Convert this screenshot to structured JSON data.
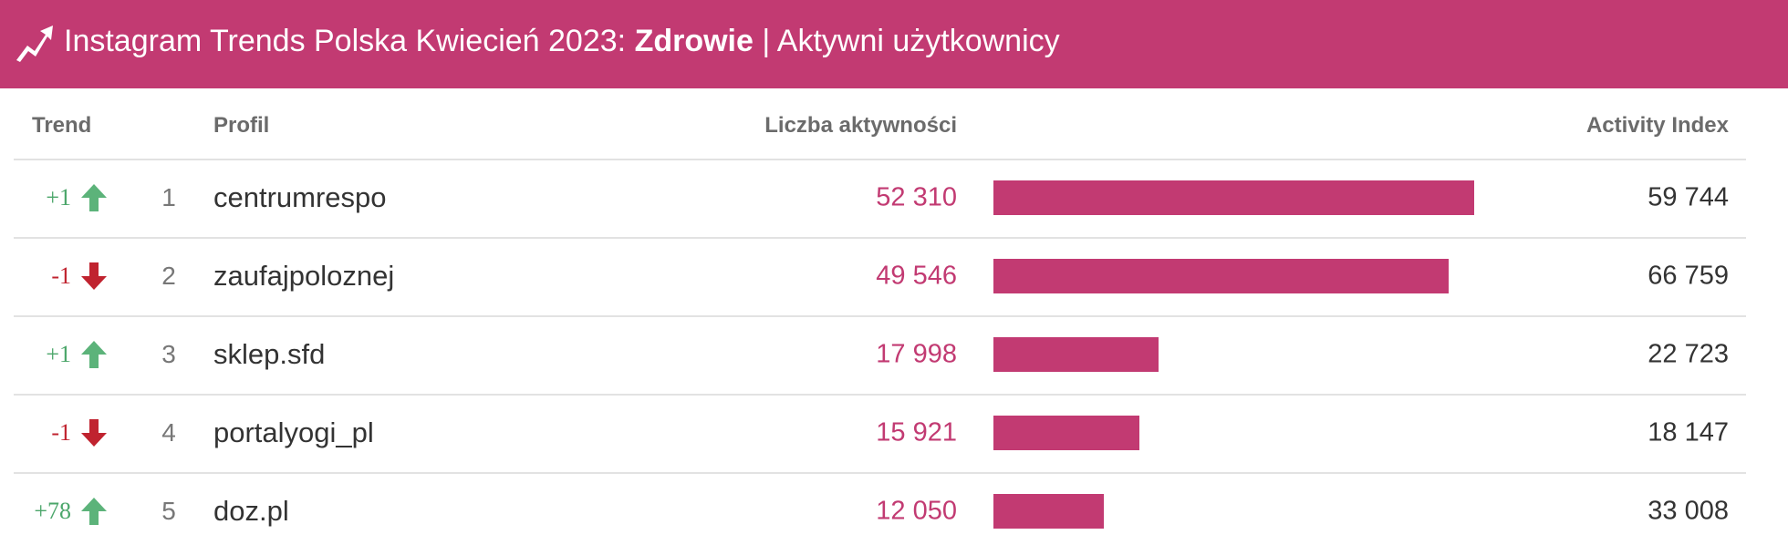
{
  "header": {
    "title": "Instagram Trends Polska Kwiecień 2023:",
    "category": "Zdrowie",
    "subtitle": "| Aktywni użytkownicy"
  },
  "table": {
    "columns": [
      "Trend",
      "Profil",
      "Liczba aktywności",
      "Activity Index"
    ],
    "rows": [
      {
        "trend": "+1",
        "rank": 1,
        "profile": "centrumrespo",
        "activity": 52310,
        "activity_label": "52 310",
        "index": "59 744"
      },
      {
        "trend": "-1",
        "rank": 2,
        "profile": "zaufajpoloznej",
        "activity": 49546,
        "activity_label": "49 546",
        "index": "66 759"
      },
      {
        "trend": "+1",
        "rank": 3,
        "profile": "sklep.sfd",
        "activity": 17998,
        "activity_label": "17 998",
        "index": "22 723"
      },
      {
        "trend": "-1",
        "rank": 4,
        "profile": "portalyogi_pl",
        "activity": 15921,
        "activity_label": "15 921",
        "index": "18 147"
      },
      {
        "trend": "+78",
        "rank": 5,
        "profile": "doz.pl",
        "activity": 12050,
        "activity_label": "12 050",
        "index": "33 008"
      }
    ]
  }
}
